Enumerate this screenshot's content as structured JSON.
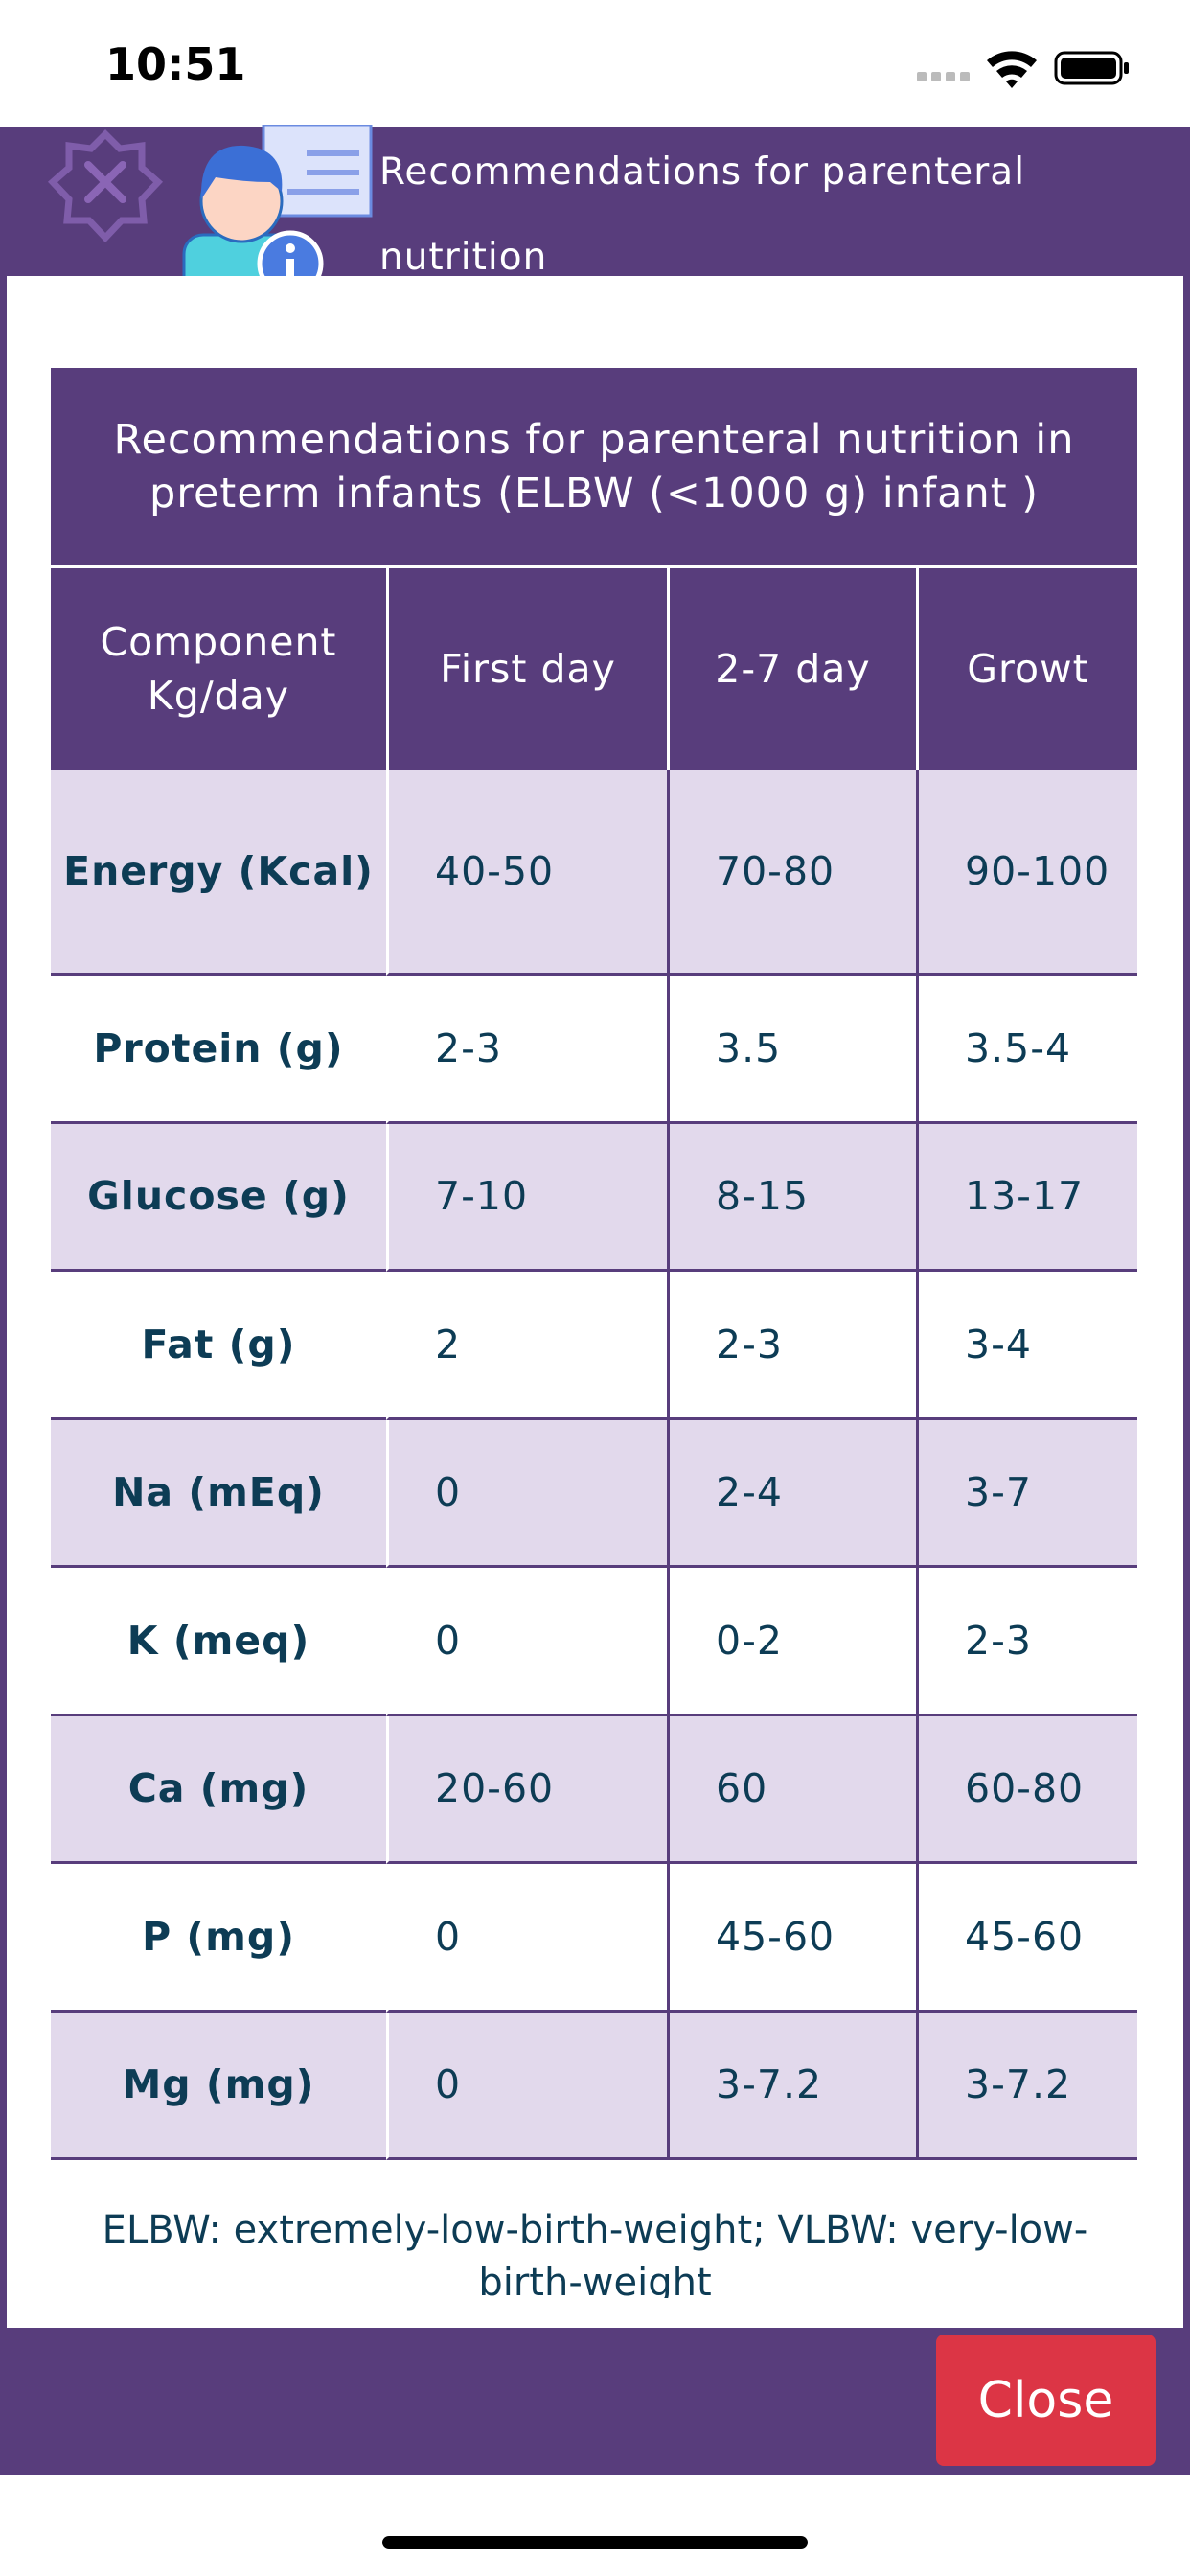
{
  "status_bar": {
    "time": "10:51"
  },
  "header": {
    "title": "Recommendations for parenteral nutrition"
  },
  "table": {
    "title": "Recommendations for parenteral nutrition in preterm infants (ELBW (<1000 g) infant )",
    "columns": [
      "Component Kg/day",
      "First day",
      "2-7 day",
      "Growt"
    ],
    "rows": [
      [
        "Energy (Kcal)",
        "40-50",
        "70-80",
        "90-100"
      ],
      [
        "Protein (g)",
        "2-3",
        "3.5",
        "3.5-4"
      ],
      [
        "Glucose (g)",
        "7-10",
        "8-15",
        "13-17"
      ],
      [
        "Fat (g)",
        "2",
        "2-3",
        "3-4"
      ],
      [
        "Na (mEq)",
        "0",
        "2-4",
        "3-7"
      ],
      [
        "K (meq)",
        "0",
        "0-2",
        "2-3"
      ],
      [
        "Ca (mg)",
        "20-60",
        "60",
        "60-80"
      ],
      [
        "P (mg)",
        "0",
        "45-60",
        "45-60"
      ],
      [
        "Mg (mg)",
        "0",
        "3-7.2",
        "3-7.2"
      ]
    ]
  },
  "footnote": "ELBW: extremely-low-birth-weight; VLBW: very-low-birth-weight",
  "close_button": "Close"
}
